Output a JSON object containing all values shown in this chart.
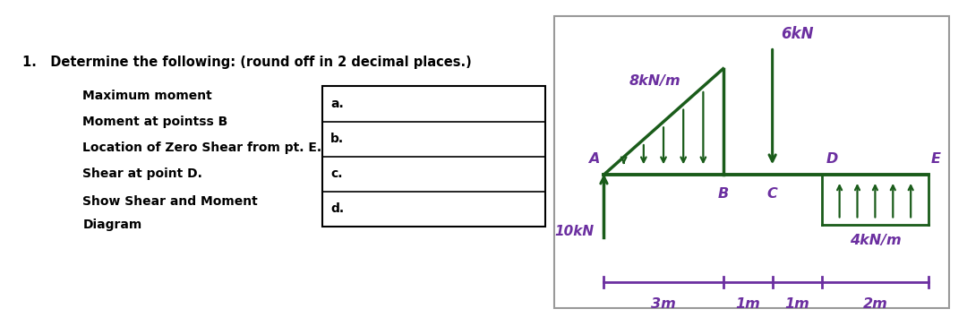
{
  "bg_color": "#ffffff",
  "text_color_left": "#000000",
  "text_color_diagram": "#6b2fa0",
  "diagram_color": "#1a5c1a",
  "title": "1.   Determine the following: (round off in 2 decimal places.)",
  "items": [
    "Maximum moment",
    "Moment at pointss B",
    "Location of Zero Shear from pt. E.",
    "Shear at point D.",
    "Show Shear and Moment",
    "Diagram"
  ],
  "labels_abc": [
    "a.",
    "b.",
    "c.",
    "d."
  ],
  "load_10kN_label": "10kN",
  "load_8kN_label": "8kN/m",
  "load_6kN_label": "6kN",
  "load_4kN_label": "4kN/m",
  "dim_3m": "3m",
  "dim_1m_1": "1m",
  "dim_1m_2": "1m",
  "dim_2m": "2m"
}
